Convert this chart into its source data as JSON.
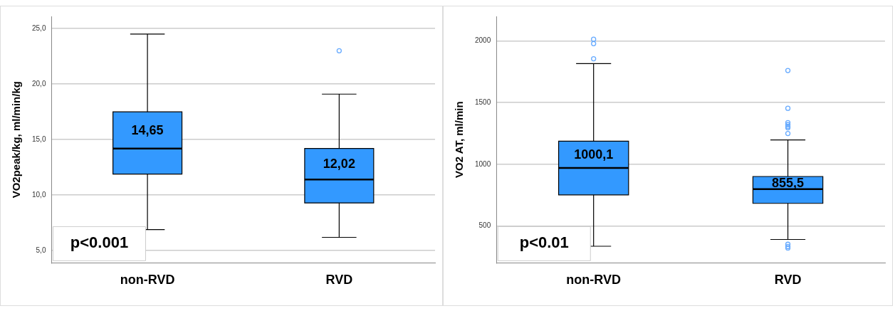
{
  "chart_data": [
    {
      "type": "box",
      "ylabel": "VO2peak/kg, ml/min/kg",
      "categories": [
        "non-RVD",
        "RVD"
      ],
      "color": "#3399ff",
      "boxes": [
        {
          "low": 6.9,
          "q1": 11.9,
          "median": 14.2,
          "q3": 17.5,
          "high": 24.5
        },
        {
          "low": 6.2,
          "q1": 9.3,
          "median": 11.4,
          "q3": 14.2,
          "high": 19.1,
          "outliers": [
            23.0
          ]
        }
      ],
      "ylim": [
        3.9,
        26.1
      ],
      "yticks": [
        {
          "value": 5,
          "label": "5,0"
        },
        {
          "value": 10,
          "label": "10,0"
        },
        {
          "value": 15,
          "label": "15,0"
        },
        {
          "value": 20,
          "label": "20,0"
        },
        {
          "value": 25,
          "label": "25,0"
        }
      ],
      "grid": "y",
      "legend": false,
      "annotations": [
        "14,65",
        "12,02",
        "p<0.001"
      ]
    },
    {
      "type": "box",
      "ylabel": "VO2 AT, ml/min",
      "categories": [
        "non-RVD",
        "RVD"
      ],
      "color": "#3399ff",
      "boxes": [
        {
          "low": 335,
          "q1": 752,
          "median": 970,
          "q3": 1188,
          "high": 1817,
          "outliers": [
            1856,
            1979,
            2014
          ]
        },
        {
          "low": 390,
          "q1": 683,
          "median": 798,
          "q3": 901,
          "high": 1197,
          "outliers": [
            1250,
            1296,
            1307,
            1321,
            1337,
            1454,
            1761,
            351,
            333,
            321
          ]
        }
      ],
      "ylim": [
        200,
        2200
      ],
      "yticks": [
        500,
        1000,
        1500,
        2000
      ],
      "grid": "y",
      "legend": false,
      "annotations": [
        "1000,1",
        "855,5",
        "p<0.01"
      ]
    }
  ]
}
